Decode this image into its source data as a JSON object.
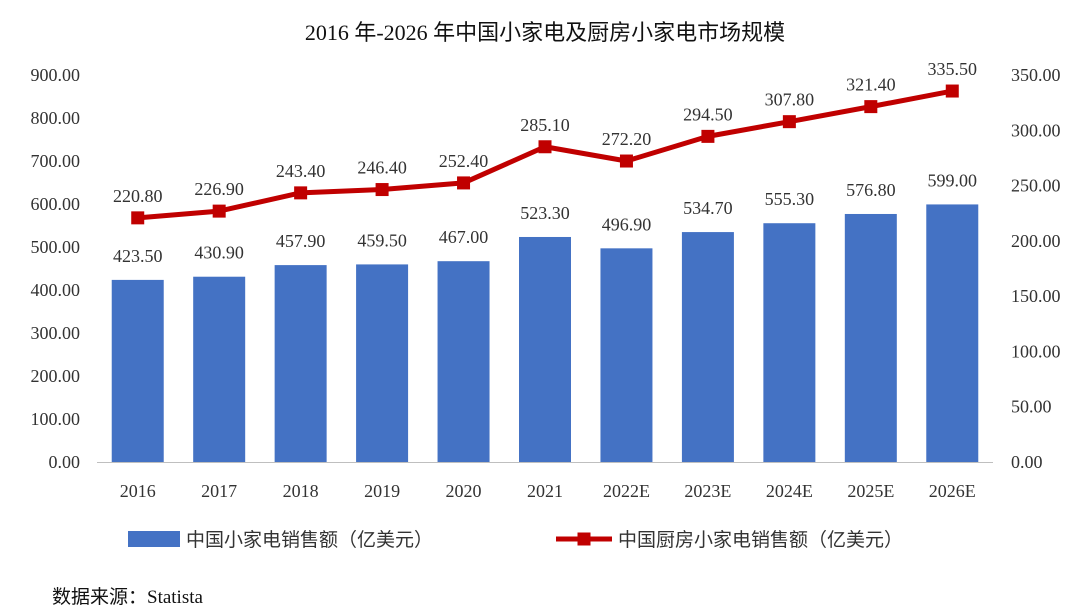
{
  "chart_data": {
    "type": "bar+line",
    "title": "2016 年-2026 年中国小家电及厨房小家电市场规模",
    "categories": [
      "2016",
      "2017",
      "2018",
      "2019",
      "2020",
      "2021",
      "2022E",
      "2023E",
      "2024E",
      "2025E",
      "2026E"
    ],
    "series": [
      {
        "name": "中国小家电销售额（亿美元）",
        "type": "bar",
        "axis": "left",
        "color": "#4472C4",
        "values": [
          423.5,
          430.9,
          457.9,
          459.5,
          467.0,
          523.3,
          496.9,
          534.7,
          555.3,
          576.8,
          599.0
        ],
        "labels": [
          "423.50",
          "430.90",
          "457.90",
          "459.50",
          "467.00",
          "523.30",
          "496.90",
          "534.70",
          "555.30",
          "576.80",
          "599.00"
        ]
      },
      {
        "name": "中国厨房小家电销售额（亿美元）",
        "type": "line",
        "axis": "right",
        "color": "#C00000",
        "marker": "square",
        "values": [
          220.8,
          226.9,
          243.4,
          246.4,
          252.4,
          285.1,
          272.2,
          294.5,
          307.8,
          321.4,
          335.5
        ],
        "labels": [
          "220.80",
          "226.90",
          "243.40",
          "246.40",
          "252.40",
          "285.10",
          "272.20",
          "294.50",
          "307.80",
          "321.40",
          "335.50"
        ]
      }
    ],
    "y_left": {
      "range": [
        0,
        900
      ],
      "ticks": [
        "0.00",
        "100.00",
        "200.00",
        "300.00",
        "400.00",
        "500.00",
        "600.00",
        "700.00",
        "800.00",
        "900.00"
      ]
    },
    "y_right": {
      "range": [
        0,
        350
      ],
      "ticks": [
        "0.00",
        "50.00",
        "100.00",
        "150.00",
        "200.00",
        "250.00",
        "300.00",
        "350.00"
      ]
    },
    "grid": false,
    "legend_position": "bottom"
  },
  "source": "数据来源：Statista"
}
